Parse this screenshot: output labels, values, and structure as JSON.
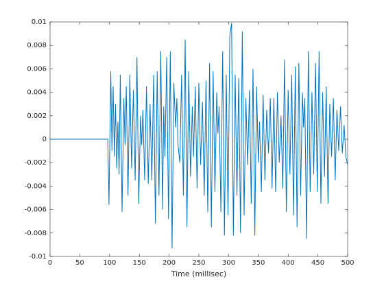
{
  "chart_data": {
    "type": "line",
    "xlabel": "Time (millisec)",
    "xlim": [
      0,
      500
    ],
    "xticks": [
      0,
      50,
      100,
      150,
      200,
      250,
      300,
      350,
      400,
      450,
      500
    ],
    "ylim": [
      -0.01,
      0.01
    ],
    "yticks": [
      -0.01,
      -0.008,
      -0.006,
      -0.004,
      -0.002,
      0,
      0.002,
      0.004,
      0.006,
      0.008,
      0.01
    ],
    "series": [
      {
        "color": "#0072bd",
        "x": [
          0,
          97,
          99,
          102,
          104,
          106,
          108,
          110,
          112,
          114,
          116,
          118,
          121,
          124,
          126,
          128,
          131,
          134,
          137,
          140,
          143,
          146,
          149,
          152,
          154,
          156,
          159,
          162,
          165,
          168,
          171,
          174,
          177,
          180,
          183,
          186,
          189,
          191,
          193,
          196,
          199,
          202,
          205,
          208,
          211,
          213,
          215,
          218,
          221,
          224,
          227,
          230,
          233,
          236,
          239,
          241,
          244,
          247,
          250,
          253,
          256,
          259,
          262,
          265,
          268,
          271,
          274,
          277,
          280,
          282,
          284,
          287,
          290,
          293,
          296,
          299,
          302,
          305,
          308,
          311,
          314,
          317,
          320,
          323,
          326,
          329,
          332,
          335,
          338,
          341,
          344,
          347,
          350,
          352,
          355,
          358,
          361,
          364,
          367,
          370,
          373,
          376,
          379,
          382,
          385,
          388,
          391,
          394,
          397,
          400,
          403,
          406,
          409,
          412,
          415,
          418,
          421,
          424,
          426,
          428,
          431,
          434,
          437,
          440,
          443,
          446,
          449,
          452,
          455,
          458,
          461,
          464,
          467,
          470,
          473,
          476,
          479,
          482,
          485,
          488,
          491,
          494,
          497,
          500
        ],
        "values": [
          0,
          0,
          -0.0056,
          0.0058,
          -0.001,
          0.0045,
          -0.0015,
          0.003,
          -0.0025,
          0.0015,
          -0.003,
          0.0055,
          -0.0062,
          0.0035,
          -0.0005,
          0.0045,
          -0.0048,
          0.0055,
          -0.0025,
          0.0042,
          -0.0035,
          0.007,
          -0.0055,
          0.002,
          -0.0005,
          0.0025,
          -0.0035,
          0.0045,
          -0.0038,
          0.003,
          -0.0035,
          0.0055,
          -0.0072,
          0.0058,
          -0.0048,
          0.0075,
          -0.006,
          0.0028,
          -0.0015,
          0.007,
          -0.0068,
          0.0075,
          -0.0093,
          0.0048,
          0.001,
          0.0035,
          -0.0005,
          -0.002,
          0.0055,
          -0.0048,
          0.0085,
          -0.0075,
          0.0058,
          -0.0032,
          0.0028,
          -0.0015,
          0.0045,
          -0.0042,
          0.0048,
          -0.0022,
          0.0032,
          -0.0048,
          0.005,
          -0.0062,
          0.0065,
          -0.0075,
          0.0058,
          -0.0045,
          0.004,
          0.0005,
          0.0028,
          -0.0062,
          0.0075,
          -0.0082,
          0.0055,
          -0.0065,
          0.0088,
          0.0099,
          -0.0082,
          0.0055,
          -0.0048,
          0.0052,
          -0.008,
          0.0092,
          -0.0065,
          0.0035,
          -0.0022,
          0.0042,
          -0.0055,
          0.006,
          -0.0082,
          0.0045,
          -0.002,
          0.0015,
          -0.0045,
          0.0038,
          -0.0035,
          0.0025,
          -0.0012,
          0.0035,
          -0.0042,
          0.0035,
          -0.0045,
          0.004,
          -0.002,
          0.002,
          -0.0042,
          0.0068,
          -0.0062,
          0.0042,
          -0.003,
          0.0055,
          -0.0065,
          0.0062,
          -0.0075,
          0.0065,
          -0.0048,
          0.004,
          0.001,
          0.0035,
          -0.0085,
          0.0075,
          -0.0045,
          0.004,
          -0.003,
          0.0065,
          -0.0045,
          0.0075,
          -0.0055,
          0.004,
          -0.0032,
          0.0045,
          -0.0055,
          0.003,
          -0.0015,
          0.0035,
          -0.0035,
          0.0025,
          -0.001,
          0.0028,
          -0.0012,
          0.0012,
          -0.0015,
          -0.0022
        ]
      }
    ]
  }
}
